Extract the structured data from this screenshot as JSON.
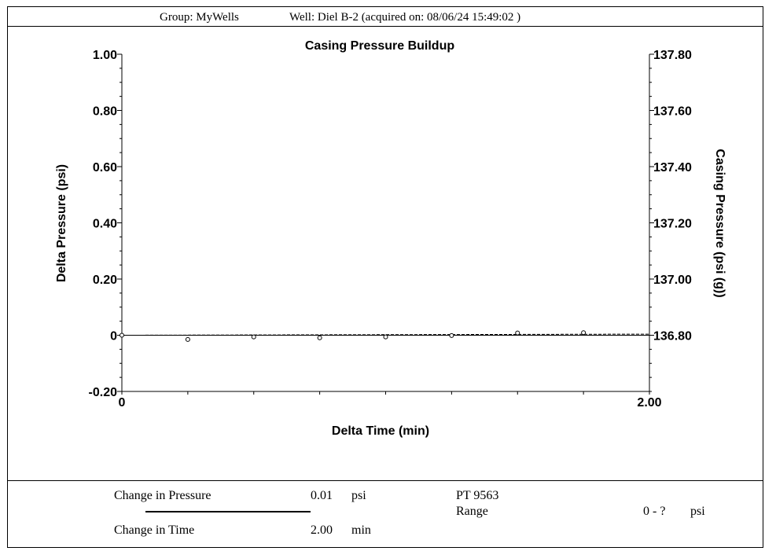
{
  "header": {
    "group": "Group: MyWells",
    "well": "Well: Diel B-2 (acquired on: 08/06/24 15:49:02 )"
  },
  "chart_data": {
    "type": "scatter",
    "title": "Casing Pressure Buildup",
    "xlabel": "Delta Time (min)",
    "ylabel": "Delta Pressure (psi)",
    "y2label": "Casing Pressure (psi (g))",
    "xlim": [
      0,
      2.0
    ],
    "ylim": [
      -0.2,
      1.0
    ],
    "y2lim": [
      136.6,
      137.8
    ],
    "x_ticks": [
      "0",
      "2.00"
    ],
    "y_ticks": [
      {
        "v": 1.0,
        "label": "1.00"
      },
      {
        "v": 0.8,
        "label": "0.80"
      },
      {
        "v": 0.6,
        "label": "0.60"
      },
      {
        "v": 0.4,
        "label": "0.40"
      },
      {
        "v": 0.2,
        "label": "0.20"
      },
      {
        "v": 0.0,
        "label": "0"
      },
      {
        "v": -0.2,
        "label": "-0.20"
      }
    ],
    "y2_ticks": [
      {
        "v": 137.8,
        "label": "137.80"
      },
      {
        "v": 137.6,
        "label": "137.60"
      },
      {
        "v": 137.4,
        "label": "137.40"
      },
      {
        "v": 137.2,
        "label": "137.20"
      },
      {
        "v": 137.0,
        "label": "137.00"
      },
      {
        "v": 136.8,
        "label": "136.80"
      }
    ],
    "points": [
      {
        "x": 0.0,
        "y": 0.0
      },
      {
        "x": 0.25,
        "y": -0.015
      },
      {
        "x": 0.5,
        "y": -0.006
      },
      {
        "x": 0.75,
        "y": -0.009
      },
      {
        "x": 1.0,
        "y": -0.006
      },
      {
        "x": 1.25,
        "y": -0.001
      },
      {
        "x": 1.5,
        "y": 0.008
      },
      {
        "x": 1.75,
        "y": 0.009
      }
    ],
    "fit_line": [
      {
        "x": 0.0,
        "y": 0.0
      },
      {
        "x": 2.0,
        "y": 0.004
      }
    ]
  },
  "footer": {
    "change_pressure_label": "Change in Pressure",
    "change_pressure_value": "0.01",
    "change_pressure_unit": "psi",
    "change_time_label": "Change in Time",
    "change_time_value": "2.00",
    "change_time_unit": "min",
    "sensor": "PT 9563",
    "range_label": "Range",
    "range_value": "0 - ?",
    "range_unit": "psi"
  }
}
